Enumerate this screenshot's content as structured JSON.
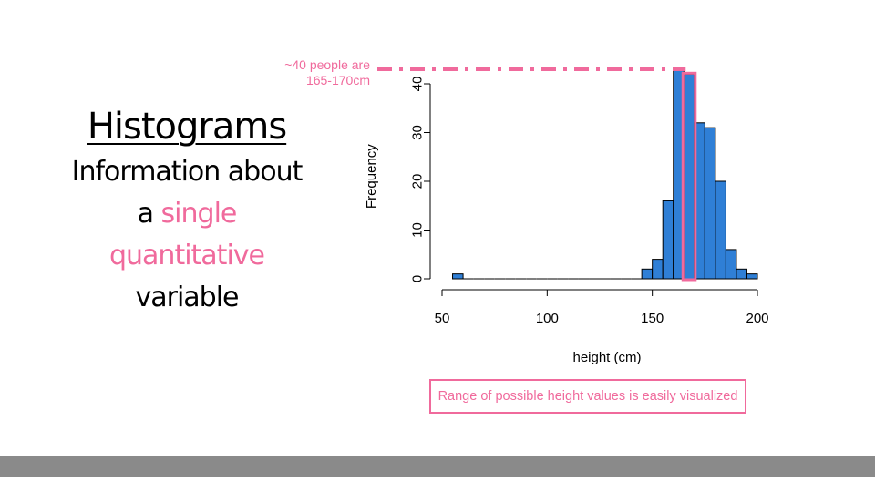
{
  "slide": {
    "title": "Histograms",
    "line1": "Information about",
    "line2_prefix": "a ",
    "line2_highlight": "single",
    "line3_highlight": "quantitative",
    "line4": "variable",
    "annotation_line1": "~40 people are",
    "annotation_line2": "165-170cm",
    "caption": "Range of possible height values is easily visualized"
  },
  "colors": {
    "bar_fill": "#2f7fd6",
    "accent_pink": "#f06a9c",
    "footer_gray": "#8a8a8a"
  },
  "chart_data": {
    "type": "bar",
    "title": "",
    "xlabel": "height (cm)",
    "ylabel": "Frequency",
    "bin_width": 5,
    "bins": [
      {
        "start": 55,
        "end": 60,
        "count": 1
      },
      {
        "start": 60,
        "end": 65,
        "count": 0
      },
      {
        "start": 65,
        "end": 70,
        "count": 0
      },
      {
        "start": 70,
        "end": 75,
        "count": 0
      },
      {
        "start": 75,
        "end": 80,
        "count": 0
      },
      {
        "start": 80,
        "end": 85,
        "count": 0
      },
      {
        "start": 85,
        "end": 90,
        "count": 0
      },
      {
        "start": 90,
        "end": 95,
        "count": 0
      },
      {
        "start": 95,
        "end": 100,
        "count": 0
      },
      {
        "start": 100,
        "end": 105,
        "count": 0
      },
      {
        "start": 105,
        "end": 110,
        "count": 0
      },
      {
        "start": 110,
        "end": 115,
        "count": 0
      },
      {
        "start": 115,
        "end": 120,
        "count": 0
      },
      {
        "start": 120,
        "end": 125,
        "count": 0
      },
      {
        "start": 125,
        "end": 130,
        "count": 0
      },
      {
        "start": 130,
        "end": 135,
        "count": 0
      },
      {
        "start": 135,
        "end": 140,
        "count": 0
      },
      {
        "start": 140,
        "end": 145,
        "count": 0
      },
      {
        "start": 145,
        "end": 150,
        "count": 2
      },
      {
        "start": 150,
        "end": 155,
        "count": 4
      },
      {
        "start": 155,
        "end": 160,
        "count": 16
      },
      {
        "start": 160,
        "end": 165,
        "count": 43
      },
      {
        "start": 165,
        "end": 170,
        "count": 42
      },
      {
        "start": 170,
        "end": 175,
        "count": 32
      },
      {
        "start": 175,
        "end": 180,
        "count": 31
      },
      {
        "start": 180,
        "end": 185,
        "count": 20
      },
      {
        "start": 185,
        "end": 190,
        "count": 6
      },
      {
        "start": 190,
        "end": 195,
        "count": 2
      },
      {
        "start": 195,
        "end": 200,
        "count": 1
      }
    ],
    "x_ticks": [
      50,
      100,
      150,
      200
    ],
    "y_ticks": [
      0,
      10,
      20,
      30,
      40
    ],
    "xlim": [
      50,
      200
    ],
    "ylim": [
      0,
      43
    ],
    "highlight_bin": {
      "start": 165,
      "end": 170
    }
  }
}
